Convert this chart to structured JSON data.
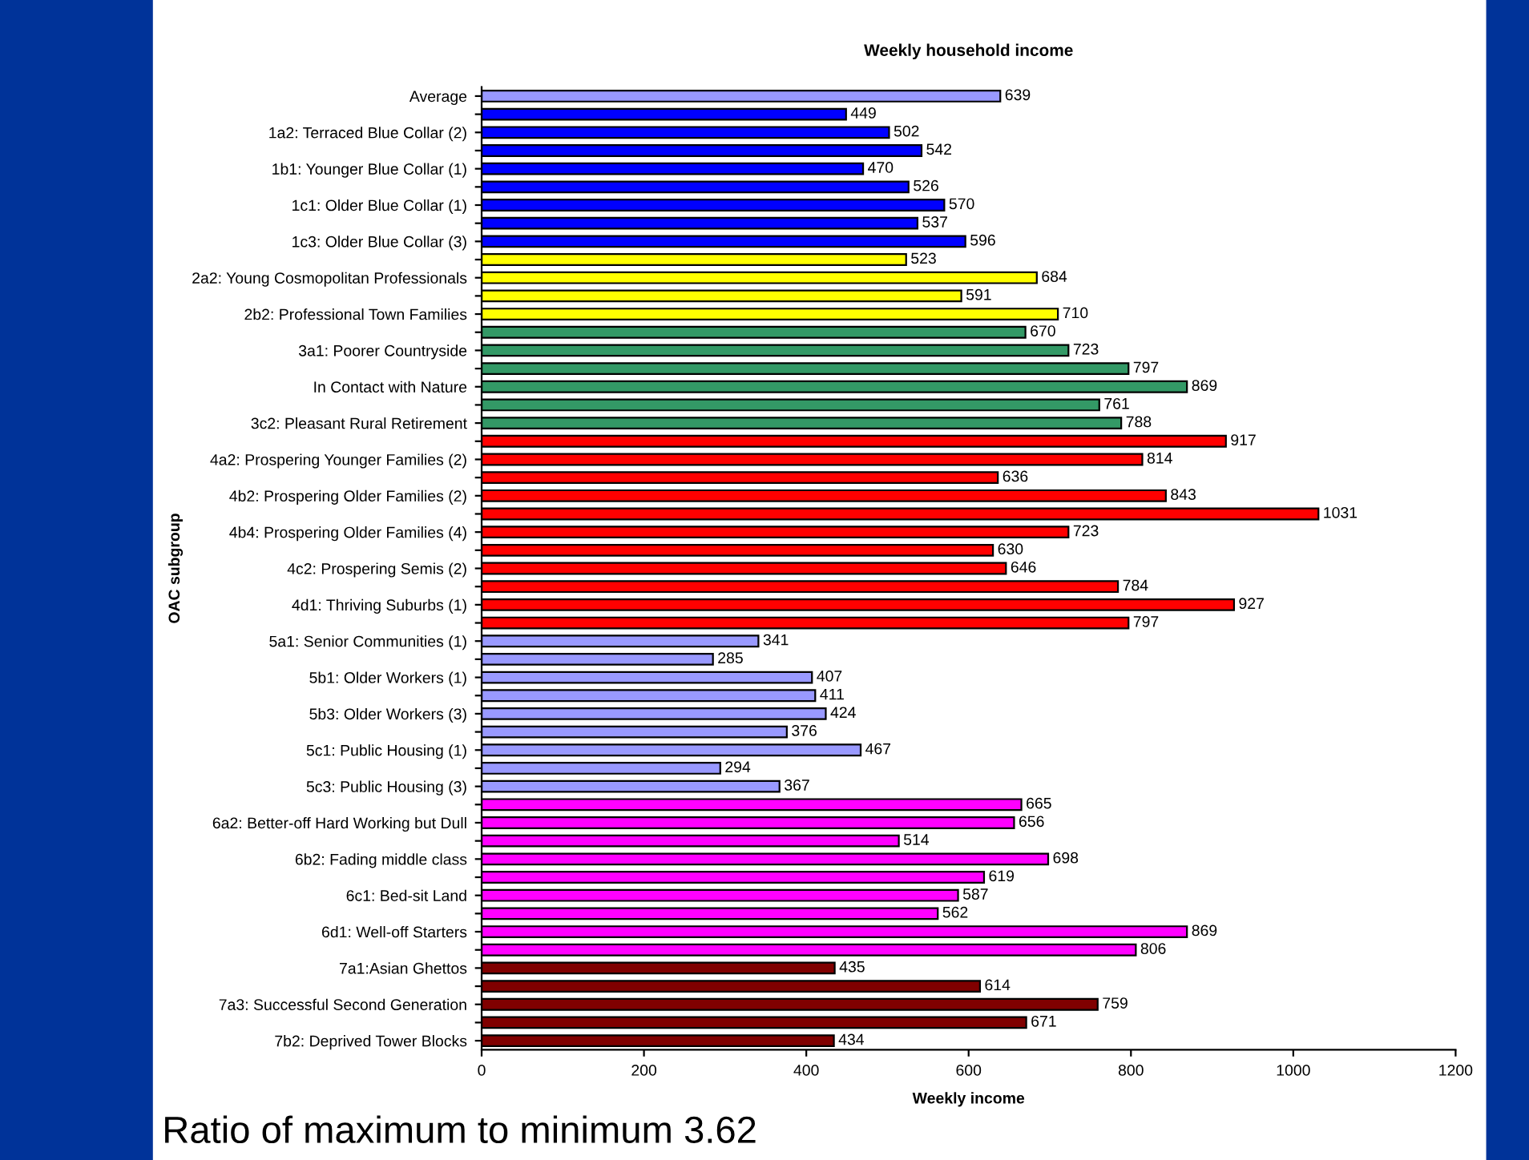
{
  "chart_data": {
    "type": "bar",
    "orientation": "horizontal",
    "title": "Weekly household income",
    "xlabel": "Weekly income",
    "ylabel": "OAC subgroup",
    "categories": [
      "Average",
      null,
      "1a2: Terraced Blue Collar (2)",
      null,
      "1b1: Younger Blue Collar (1)",
      null,
      "1c1: Older Blue Collar (1)",
      null,
      "1c3: Older Blue Collar (3)",
      null,
      "2a2: Young Cosmopolitan Professionals",
      null,
      "2b2: Professional Town Families",
      null,
      "3a1: Poorer Countryside",
      null,
      "In Contact with Nature",
      null,
      "3c2: Pleasant Rural Retirement",
      null,
      "4a2: Prospering Younger Families (2)",
      null,
      "4b2: Prospering Older Families (2)",
      null,
      "4b4: Prospering Older Families (4)",
      null,
      "4c2: Prospering Semis (2)",
      null,
      "4d1: Thriving Suburbs (1)",
      null,
      "5a1: Senior Communities (1)",
      null,
      "5b1: Older Workers (1)",
      null,
      "5b3: Older Workers (3)",
      null,
      "5c1: Public Housing (1)",
      null,
      "5c3: Public Housing (3)",
      null,
      "6a2: Better-off Hard Working but Dull",
      null,
      "6b2: Fading middle class",
      null,
      "6c1: Bed-sit Land",
      null,
      "6d1: Well-off Starters",
      null,
      "7a1:Asian Ghettos",
      null,
      "7a3: Successful Second Generation",
      null,
      "7b2: Deprived Tower Blocks"
    ],
    "values": [
      639,
      449,
      502,
      542,
      470,
      526,
      570,
      537,
      596,
      523,
      684,
      591,
      710,
      670,
      723,
      797,
      869,
      761,
      788,
      917,
      814,
      636,
      843,
      1031,
      723,
      630,
      646,
      784,
      927,
      797,
      341,
      285,
      407,
      411,
      424,
      376,
      467,
      294,
      367,
      665,
      656,
      514,
      698,
      619,
      587,
      562,
      869,
      806,
      435,
      614,
      759,
      671,
      434
    ],
    "colors": [
      "#9999ff",
      "#0000ff",
      "#0000ff",
      "#0000ff",
      "#0000ff",
      "#0000ff",
      "#0000ff",
      "#0000ff",
      "#0000ff",
      "#ffff00",
      "#ffff00",
      "#ffff00",
      "#ffff00",
      "#339966",
      "#339966",
      "#339966",
      "#339966",
      "#339966",
      "#339966",
      "#ff0000",
      "#ff0000",
      "#ff0000",
      "#ff0000",
      "#ff0000",
      "#ff0000",
      "#ff0000",
      "#ff0000",
      "#ff0000",
      "#ff0000",
      "#ff0000",
      "#9999ff",
      "#9999ff",
      "#9999ff",
      "#9999ff",
      "#9999ff",
      "#9999ff",
      "#9999ff",
      "#9999ff",
      "#9999ff",
      "#ff00ff",
      "#ff00ff",
      "#ff00ff",
      "#ff00ff",
      "#ff00ff",
      "#ff00ff",
      "#ff00ff",
      "#ff00ff",
      "#ff00ff",
      "#800000",
      "#800000",
      "#800000",
      "#800000",
      "#800000"
    ],
    "xlim": [
      0,
      1200
    ],
    "xticks": [
      0,
      200,
      400,
      600,
      800,
      1000,
      1200
    ],
    "data_labels": true,
    "grid": false,
    "legend": false,
    "annotations": [
      "Ratio of maximum to minimum 3.62"
    ]
  }
}
